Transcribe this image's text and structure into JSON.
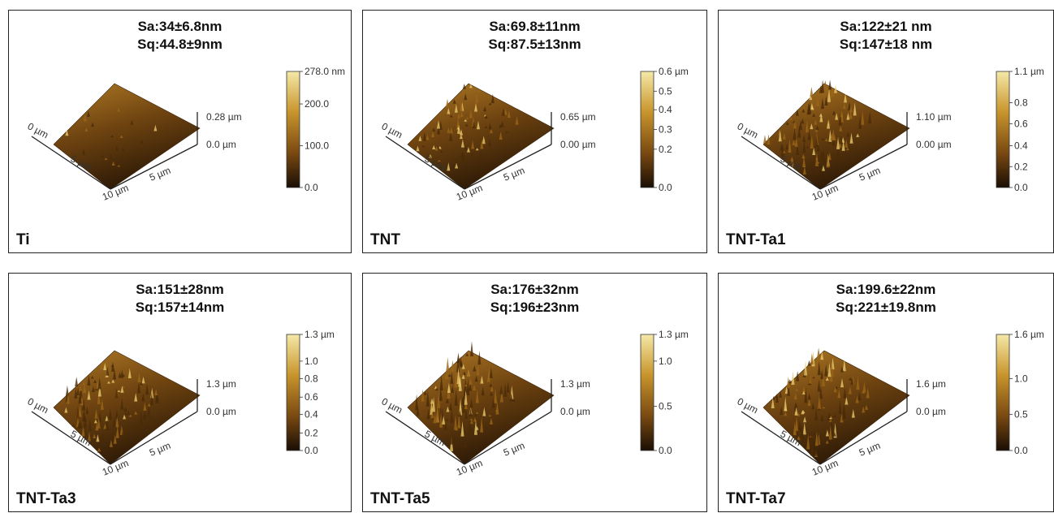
{
  "panels": [
    {
      "sample": "Ti",
      "sa": "Sa:34±6.8nm",
      "sq": "Sq:44.8±9nm",
      "z_top": "0.28 µm",
      "z_bottom": "0.0 µm",
      "axis_0": "0 µm",
      "axis_5a": "5 µm",
      "axis_10": "10 µm",
      "axis_5b": "5 µm",
      "colorbar_ticks": [
        "278.0 nm",
        "200.0",
        "100.0",
        "0.0"
      ],
      "colorbar_levels": [
        1.0,
        0.72,
        0.36,
        0.0
      ]
    },
    {
      "sample": "TNT",
      "sa": "Sa:69.8±11nm",
      "sq": "Sq:87.5±13nm",
      "z_top": "0.65 µm",
      "z_bottom": "0.00 µm",
      "axis_0": "0 µm",
      "axis_5a": "5 µm",
      "axis_10": "10 µm",
      "axis_5b": "5 µm",
      "colorbar_ticks": [
        "0.6 µm",
        "0.5",
        "0.4",
        "0.3",
        "0.2",
        "0.0"
      ],
      "colorbar_levels": [
        1.0,
        0.83,
        0.67,
        0.5,
        0.33,
        0.0
      ]
    },
    {
      "sample": "TNT-Ta1",
      "sa": "Sa:122±21 nm",
      "sq": "Sq:147±18 nm",
      "z_top": "1.10 µm",
      "z_bottom": "0.00 µm",
      "axis_0": "0 µm",
      "axis_5a": "5 µm",
      "axis_10": "10 µm",
      "axis_5b": "5 µm",
      "colorbar_ticks": [
        "1.1 µm",
        "0.8",
        "0.6",
        "0.4",
        "0.2",
        "0.0"
      ],
      "colorbar_levels": [
        1.0,
        0.73,
        0.55,
        0.36,
        0.18,
        0.0
      ]
    },
    {
      "sample": "TNT-Ta3",
      "sa": "Sa:151±28nm",
      "sq": "Sq:157±14nm",
      "z_top": "1.3 µm",
      "z_bottom": "0.0 µm",
      "axis_0": "0 µm",
      "axis_5a": "5 µm",
      "axis_10": "10 µm",
      "axis_5b": "5 µm",
      "colorbar_ticks": [
        "1.3 µm",
        "1.0",
        "0.8",
        "0.6",
        "0.4",
        "0.2",
        "0.0"
      ],
      "colorbar_levels": [
        1.0,
        0.77,
        0.62,
        0.46,
        0.31,
        0.15,
        0.0
      ]
    },
    {
      "sample": "TNT-Ta5",
      "sa": "Sa:176±32nm",
      "sq": "Sq:196±23nm",
      "z_top": "1.3 µm",
      "z_bottom": "0.0 µm",
      "axis_0": "0 µm",
      "axis_5a": "5 µm",
      "axis_10": "10 µm",
      "axis_5b": "5 µm",
      "colorbar_ticks": [
        "1.3 µm",
        "1.0",
        "0.5",
        "0.0"
      ],
      "colorbar_levels": [
        1.0,
        0.77,
        0.38,
        0.0
      ]
    },
    {
      "sample": "TNT-Ta7",
      "sa": "Sa:199.6±22nm",
      "sq": "Sq:221±19.8nm",
      "z_top": "1.6 µm",
      "z_bottom": "0.0 µm",
      "axis_0": "0 µm",
      "axis_5a": "5 µm",
      "axis_10": "10 µm",
      "axis_5b": "5 µm",
      "colorbar_ticks": [
        "1.6 µm",
        "1.0",
        "0.5",
        "0.0"
      ],
      "colorbar_levels": [
        1.0,
        0.62,
        0.31,
        0.0
      ]
    }
  ],
  "colors": {
    "bright": "#f5e9a8",
    "gold": "#c8952c",
    "brown": "#7a4a12",
    "dark": "#1a0e04"
  }
}
